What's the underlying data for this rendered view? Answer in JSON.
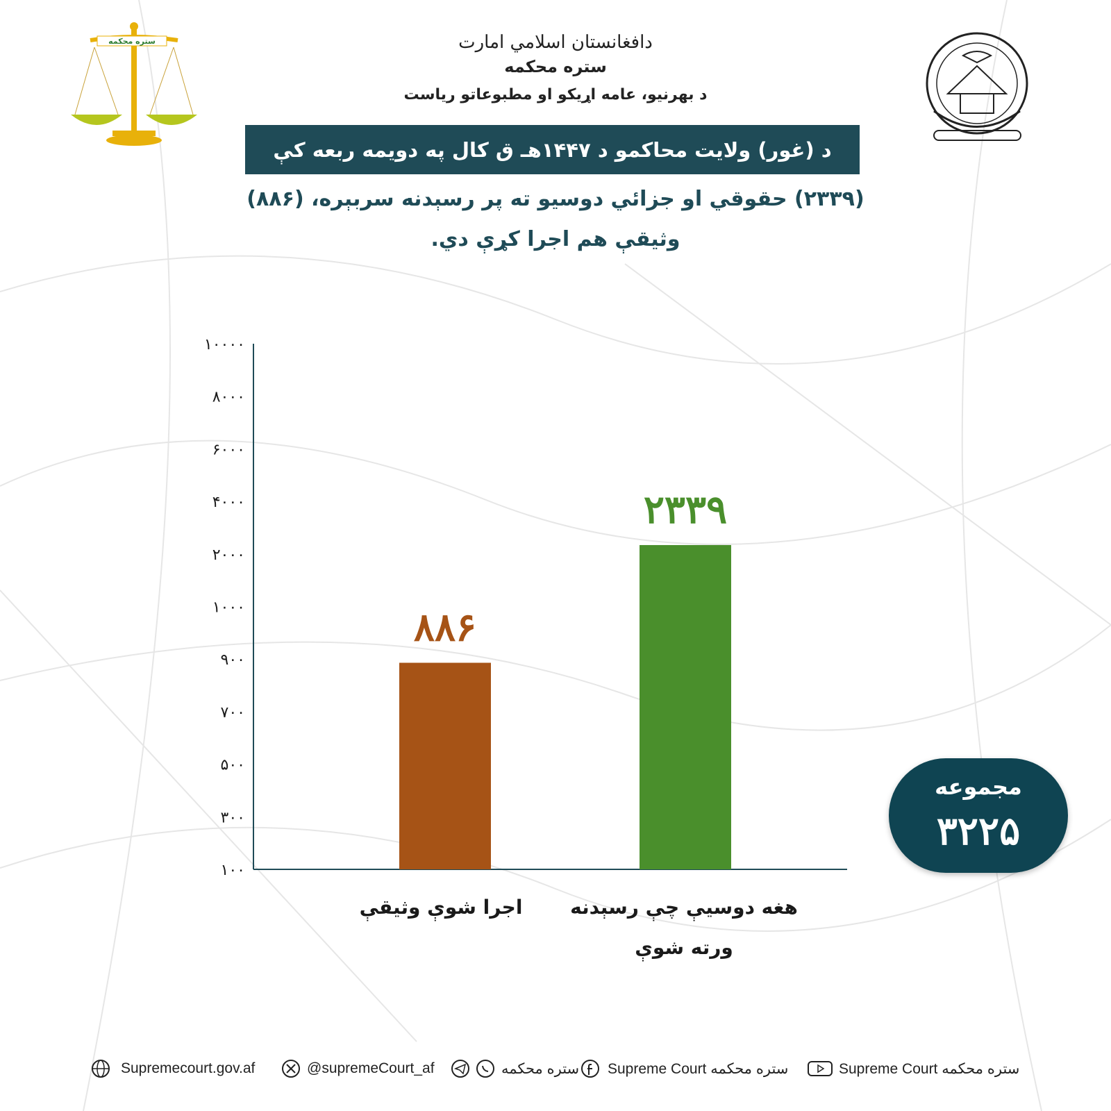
{
  "header": {
    "line1": "دافغانستان اسلامي امارت",
    "line2": "ستره محکمه",
    "line3": "د بهرنيو، عامه اړيکو او مطبوعاتو رياست"
  },
  "logo": {
    "text": "ستره محکمه",
    "color": "#f2b705"
  },
  "title": "د (غور) ولايت محاکمو د ۱۴۴۷هـ ق کال په دويمه ربعه کې",
  "subtitle_line1": "(۲۳۳۹) حقوقي او جزائي دوسيو ته پر رسېدنه سربېره، (۸۸۶)",
  "subtitle_line2": "وثيقې هم اجرا کړې دي.",
  "chart_data": {
    "type": "bar",
    "categories": [
      "اجرا شوې وثيقې",
      "هغه دوسيې چې رسېدنه ورته شوې"
    ],
    "values": [
      886,
      2339
    ],
    "value_labels": [
      "۸۸۶",
      "۲۳۳۹"
    ],
    "colors": [
      "#a65316",
      "#4a8f2c"
    ],
    "y_tick_labels": [
      "۱۰۰",
      "۳۰۰",
      "۵۰۰",
      "۷۰۰",
      "۹۰۰",
      "۱۰۰۰",
      "۲۰۰۰",
      "۴۰۰۰",
      "۶۰۰۰",
      "۸۰۰۰",
      "۱۰۰۰۰"
    ],
    "y_tick_values": [
      100,
      300,
      500,
      700,
      900,
      1000,
      2000,
      4000,
      6000,
      8000,
      10000
    ],
    "y_scale": "non-uniform categorical ticks",
    "grid": false
  },
  "x_labels": {
    "bar1": "اجرا شوې وثيقې",
    "bar2_line1": "هغه دوسيې چې رسېدنه",
    "bar2_line2": "ورته شوې"
  },
  "total": {
    "label": "مجموعه",
    "value": "۳۲۲۵"
  },
  "footer": {
    "website": "Supremecourt.gov.af",
    "twitter": "@supremeCourt_af",
    "telegram_whatsapp": "ستره محکمه",
    "facebook": "Supreme Court ستره محکمه",
    "youtube": "Supreme Court ستره محکمه"
  },
  "accent_color": "#1f4b57"
}
